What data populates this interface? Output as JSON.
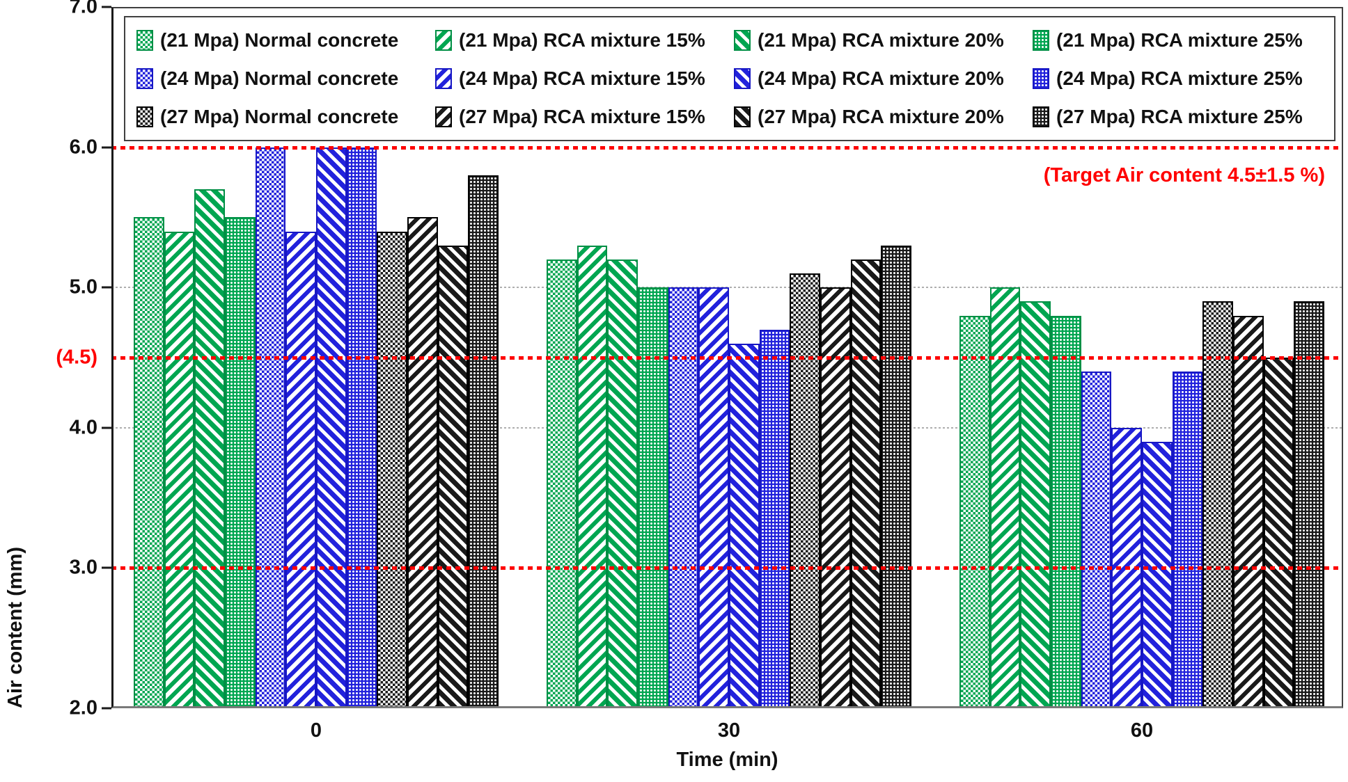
{
  "chart_data": {
    "type": "bar",
    "title": "",
    "ylabel": "Air content (mm)",
    "xlabel": "Time (min)",
    "ylim": [
      2.0,
      7.0
    ],
    "grid": "dotted horizontal",
    "legend_position": "top inside, 4 columns x 3 rows",
    "yticks": [
      {
        "label": "7.0",
        "value": 7.0,
        "color": "#111111",
        "tickmark": true
      },
      {
        "label": "6.0",
        "value": 6.0,
        "color": "#111111",
        "tickmark": true
      },
      {
        "label": "5.0",
        "value": 5.0,
        "color": "#111111",
        "tickmark": true
      },
      {
        "label": "(4.5)",
        "value": 4.5,
        "color": "#FF0000",
        "tickmark": false
      },
      {
        "label": "4.0",
        "value": 4.0,
        "color": "#111111",
        "tickmark": true
      },
      {
        "label": "3.0",
        "value": 3.0,
        "color": "#111111",
        "tickmark": true
      },
      {
        "label": "2.0",
        "value": 2.0,
        "color": "#111111",
        "tickmark": true
      }
    ],
    "gridlines": [
      5.0,
      4.0
    ],
    "reference_lines": {
      "values": [
        6.0,
        4.5,
        3.0
      ],
      "color": "#FF0000",
      "style": "dotted"
    },
    "annotation": "(Target Air content 4.5±1.5 %)",
    "annotation_color": "#FF0000",
    "categories": [
      "0",
      "30",
      "60"
    ],
    "series": [
      {
        "id": "21mpa-normal",
        "label": "(21 Mpa) Normal concrete",
        "color": "green",
        "pattern": "checker",
        "values": [
          5.5,
          5.2,
          4.8
        ]
      },
      {
        "id": "21mpa-rca15",
        "label": "(21 Mpa) RCA mixture 15%",
        "color": "green",
        "pattern": "stripe-up",
        "values": [
          5.4,
          5.3,
          5.0
        ]
      },
      {
        "id": "21mpa-rca20",
        "label": "(21 Mpa) RCA mixture 20%",
        "color": "green",
        "pattern": "stripe-down",
        "values": [
          5.7,
          5.2,
          4.9
        ]
      },
      {
        "id": "21mpa-rca25",
        "label": "(21 Mpa) RCA mixture 25%",
        "color": "green",
        "pattern": "dots",
        "values": [
          5.5,
          5.0,
          4.8
        ]
      },
      {
        "id": "24mpa-normal",
        "label": "(24 Mpa) Normal concrete",
        "color": "blue",
        "pattern": "checker",
        "values": [
          6.0,
          5.0,
          4.4
        ]
      },
      {
        "id": "24mpa-rca15",
        "label": "(24 Mpa) RCA mixture 15%",
        "color": "blue",
        "pattern": "stripe-up",
        "values": [
          5.4,
          5.0,
          4.0
        ]
      },
      {
        "id": "24mpa-rca20",
        "label": "(24 Mpa) RCA mixture 20%",
        "color": "blue",
        "pattern": "stripe-down",
        "values": [
          6.0,
          4.6,
          3.9
        ]
      },
      {
        "id": "24mpa-rca25",
        "label": "(24 Mpa) RCA mixture 25%",
        "color": "blue",
        "pattern": "dots",
        "values": [
          6.0,
          4.7,
          4.4
        ]
      },
      {
        "id": "27mpa-normal",
        "label": "(27 Mpa) Normal concrete",
        "color": "black",
        "pattern": "checker",
        "values": [
          5.4,
          5.1,
          4.9
        ]
      },
      {
        "id": "27mpa-rca15",
        "label": "(27 Mpa) RCA mixture 15%",
        "color": "black",
        "pattern": "stripe-up",
        "values": [
          5.5,
          5.0,
          4.8
        ]
      },
      {
        "id": "27mpa-rca20",
        "label": "(27 Mpa) RCA mixture 20%",
        "color": "black",
        "pattern": "stripe-down",
        "values": [
          5.3,
          5.2,
          4.5
        ]
      },
      {
        "id": "27mpa-rca25",
        "label": "(27 Mpa) RCA mixture 25%",
        "color": "black",
        "pattern": "dots",
        "values": [
          5.8,
          5.3,
          4.9
        ]
      }
    ],
    "series_colors": {
      "green": "#00A651",
      "blue": "#2222DC",
      "black": "#1a1a1a"
    }
  }
}
